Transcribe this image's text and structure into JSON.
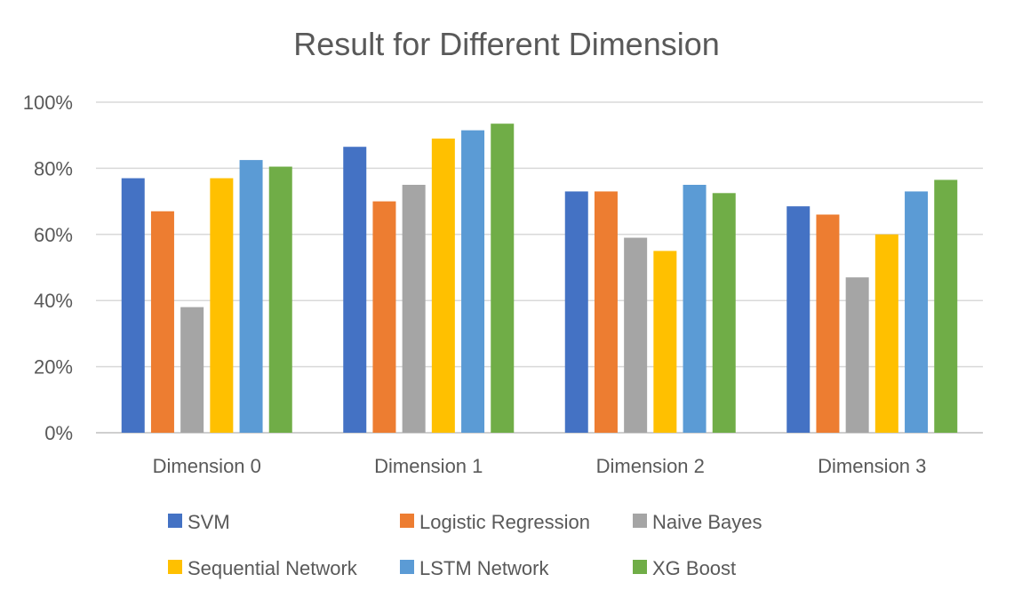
{
  "chart_data": {
    "type": "bar",
    "title": "Result for Different Dimension",
    "xlabel": "",
    "ylabel": "",
    "ylim": [
      0,
      100
    ],
    "y_ticks": [
      "0%",
      "20%",
      "40%",
      "60%",
      "80%",
      "100%"
    ],
    "y_tick_values": [
      0,
      20,
      40,
      60,
      80,
      100
    ],
    "grid": true,
    "legend_position": "bottom",
    "categories": [
      "Dimension 0",
      "Dimension 1",
      "Dimension 2",
      "Dimension 3"
    ],
    "series": [
      {
        "name": "SVM",
        "color": "#4472c4",
        "values": [
          77,
          86.5,
          73,
          68.5
        ]
      },
      {
        "name": "Logistic Regression",
        "color": "#ed7d31",
        "values": [
          67,
          70,
          73,
          66
        ]
      },
      {
        "name": "Naive Bayes",
        "color": "#a5a5a5",
        "values": [
          38,
          75,
          59,
          47
        ]
      },
      {
        "name": "Sequential Network",
        "color": "#ffc000",
        "values": [
          77,
          89,
          55,
          60
        ]
      },
      {
        "name": "LSTM Network",
        "color": "#5b9bd5",
        "values": [
          82.5,
          91.5,
          75,
          73
        ]
      },
      {
        "name": "XG Boost",
        "color": "#70ad47",
        "values": [
          80.5,
          93.5,
          72.5,
          76.5
        ]
      }
    ]
  }
}
